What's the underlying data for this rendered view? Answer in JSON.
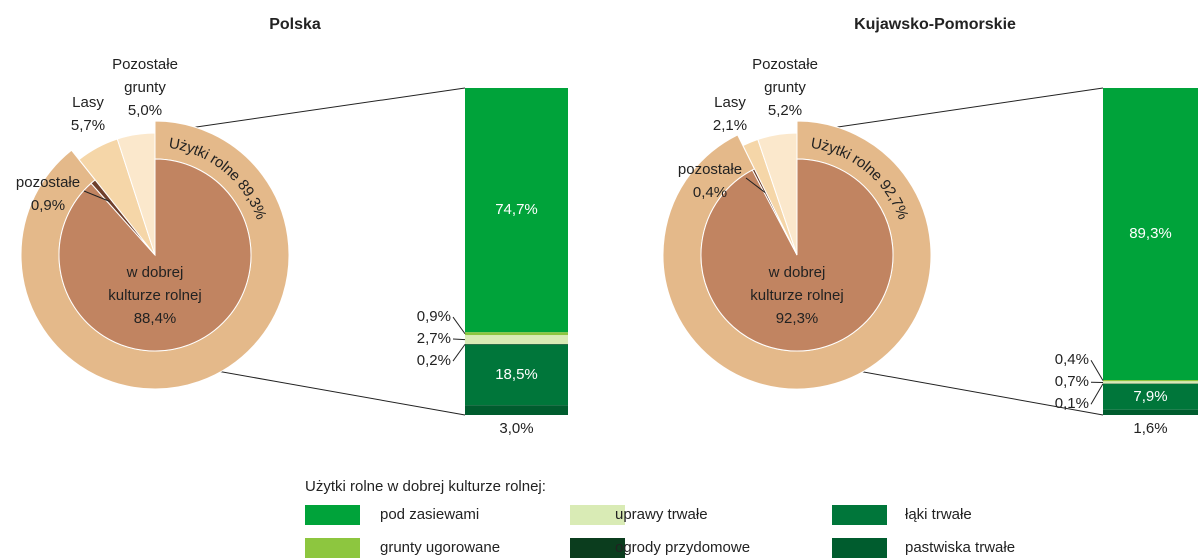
{
  "chart_data": [
    {
      "type": "pie",
      "title": "Polska",
      "slices": [
        {
          "label": [
            "w dobrej",
            "kulturze rolnej"
          ],
          "value": 88.4,
          "value_label": "88,4%",
          "color": "#c18461"
        },
        {
          "label": [
            "pozostałe"
          ],
          "value": 0.9,
          "value_label": "0,9%",
          "color": "#6e3f2c"
        },
        {
          "label": [
            "Lasy"
          ],
          "value": 5.7,
          "value_label": "5,7%",
          "color": "#f5d6a8"
        },
        {
          "label": [
            "Pozostałe",
            "grunty"
          ],
          "value": 5.0,
          "value_label": "5,0%",
          "color": "#fbe8cc"
        }
      ],
      "ring": {
        "label": "Użytki rolne",
        "value": 89.3,
        "value_label": "89,3%",
        "color": "#e4b98a"
      },
      "bar": {
        "values": [
          74.7,
          0.9,
          2.7,
          0.2,
          18.5,
          3.0
        ],
        "value_labels": [
          "74,7%",
          "0,9%",
          "2,7%",
          "0,2%",
          "18,5%",
          "3,0%"
        ]
      }
    },
    {
      "type": "pie",
      "title": "Kujawsko-Pomorskie",
      "slices": [
        {
          "label": [
            "w dobrej",
            "kulturze rolnej"
          ],
          "value": 92.3,
          "value_label": "92,3%",
          "color": "#c18461"
        },
        {
          "label": [
            "pozostałe"
          ],
          "value": 0.4,
          "value_label": "0,4%",
          "color": "#6e3f2c"
        },
        {
          "label": [
            "Lasy"
          ],
          "value": 2.1,
          "value_label": "2,1%",
          "color": "#f5d6a8"
        },
        {
          "label": [
            "Pozostałe",
            "grunty"
          ],
          "value": 5.2,
          "value_label": "5,2%",
          "color": "#fbe8cc"
        }
      ],
      "ring": {
        "label": "Użytki rolne",
        "value": 92.7,
        "value_label": "92,7%",
        "color": "#e4b98a"
      },
      "bar": {
        "values": [
          89.3,
          0.4,
          0.7,
          0.1,
          7.9,
          1.6
        ],
        "value_labels": [
          "89,3%",
          "0,4%",
          "0,7%",
          "0,1%",
          "7,9%",
          "1,6%"
        ]
      }
    }
  ],
  "legend": {
    "title": "Użytki rolne w dobrej kulturze rolnej:",
    "items": [
      {
        "name": "pod zasiewami",
        "color": "#00a33a"
      },
      {
        "name": "grunty ugorowane",
        "color": "#8dc63f"
      },
      {
        "name": "uprawy trwałe",
        "color": "#d9ebb5"
      },
      {
        "name": "ogrody przydomowe",
        "color": "#0b3d1e"
      },
      {
        "name": "łąki trwałe",
        "color": "#00763a"
      },
      {
        "name": "pastwiska trwałe",
        "color": "#005c2e"
      }
    ]
  }
}
